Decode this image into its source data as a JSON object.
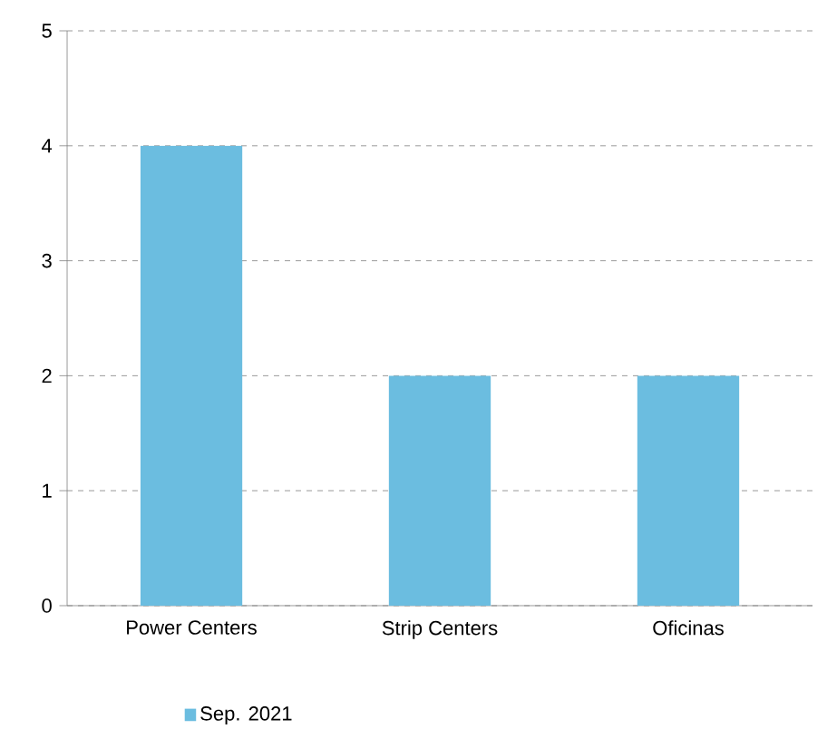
{
  "chart_data": {
    "type": "bar",
    "categories": [
      "Power Centers",
      "Strip Centers",
      "Oficinas"
    ],
    "series": [
      {
        "name": "Sep. 2021",
        "color": "#6bbde0",
        "values": [
          4,
          2,
          2
        ]
      }
    ],
    "ylim": [
      0,
      5
    ],
    "yticks": [
      0,
      1,
      2,
      3,
      4,
      5
    ],
    "grid": "y",
    "legend": "bottom left"
  }
}
